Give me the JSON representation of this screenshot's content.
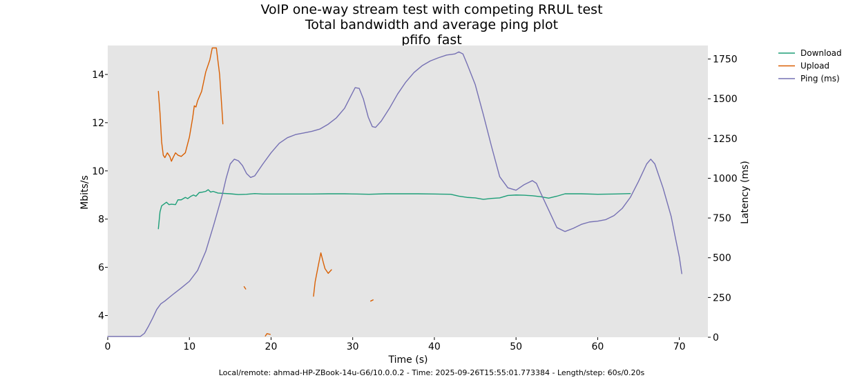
{
  "chart_data": {
    "type": "line",
    "title_lines": [
      "VoIP one-way stream test with competing RRUL test",
      "Total bandwidth and average ping plot",
      "pfifo_fast"
    ],
    "xlabel": "Time (s)",
    "ylabel_left": "Mbits/s",
    "ylabel_right": "Latency (ms)",
    "xlim": [
      0,
      73.5
    ],
    "ylim_left": [
      3.1,
      15.2
    ],
    "ylim_right": [
      0,
      1835
    ],
    "x_ticks": [
      0,
      10,
      20,
      30,
      40,
      50,
      60,
      70
    ],
    "y_ticks_left": [
      4,
      6,
      8,
      10,
      12,
      14
    ],
    "y_ticks_right": [
      0,
      250,
      500,
      750,
      1000,
      1250,
      1500,
      1750
    ],
    "grid": false,
    "background": "#e5e5e5",
    "legend_position": "upper right, outside plot",
    "footer": "Local/remote: ahmad-HP-ZBook-14u-G6/10.0.0.2 - Time: 2025-09-26T15:55:01.773384 - Length/step: 60s/0.20s",
    "series": [
      {
        "name": "Download",
        "axis": "left",
        "color": "#1b9e77",
        "segments": [
          [
            [
              6.2,
              7.6
            ],
            [
              6.4,
              8.3
            ],
            [
              6.6,
              8.55
            ],
            [
              7.0,
              8.65
            ],
            [
              7.2,
              8.7
            ],
            [
              7.5,
              8.6
            ],
            [
              7.8,
              8.62
            ],
            [
              8.3,
              8.6
            ],
            [
              8.6,
              8.8
            ],
            [
              9.0,
              8.8
            ],
            [
              9.5,
              8.9
            ],
            [
              9.8,
              8.85
            ],
            [
              10.2,
              8.95
            ],
            [
              10.5,
              9.0
            ],
            [
              10.8,
              8.95
            ],
            [
              11.2,
              9.1
            ],
            [
              11.6,
              9.12
            ],
            [
              12.0,
              9.15
            ],
            [
              12.3,
              9.22
            ],
            [
              12.6,
              9.12
            ],
            [
              12.9,
              9.15
            ],
            [
              13.5,
              9.08
            ],
            [
              15.0,
              9.05
            ],
            [
              16.0,
              9.02
            ],
            [
              17.0,
              9.03
            ],
            [
              18.0,
              9.06
            ],
            [
              19.0,
              9.04
            ],
            [
              21.0,
              9.04
            ],
            [
              23.0,
              9.04
            ],
            [
              25.0,
              9.04
            ],
            [
              27.0,
              9.05
            ],
            [
              29.0,
              9.05
            ],
            [
              30.5,
              9.04
            ],
            [
              32.0,
              9.03
            ],
            [
              34.0,
              9.05
            ],
            [
              36.0,
              9.05
            ],
            [
              38.0,
              9.05
            ],
            [
              40.0,
              9.04
            ],
            [
              42.0,
              9.03
            ],
            [
              43.0,
              8.95
            ],
            [
              44.0,
              8.9
            ],
            [
              45.0,
              8.88
            ],
            [
              46.0,
              8.82
            ],
            [
              47.0,
              8.86
            ],
            [
              48.0,
              8.88
            ],
            [
              49.0,
              8.98
            ],
            [
              50.0,
              9.0
            ],
            [
              51.0,
              8.99
            ],
            [
              52.0,
              8.97
            ],
            [
              53.0,
              8.93
            ],
            [
              54.0,
              8.87
            ],
            [
              55.0,
              8.95
            ],
            [
              56.0,
              9.05
            ],
            [
              58.0,
              9.05
            ],
            [
              60.0,
              9.03
            ],
            [
              62.0,
              9.04
            ],
            [
              64.0,
              9.06
            ]
          ]
        ]
      },
      {
        "name": "Upload",
        "axis": "left",
        "color": "#d95f02",
        "segments": [
          [
            [
              6.2,
              13.3
            ],
            [
              6.4,
              12.4
            ],
            [
              6.6,
              11.2
            ],
            [
              6.8,
              10.65
            ],
            [
              7.0,
              10.55
            ],
            [
              7.3,
              10.75
            ],
            [
              7.6,
              10.6
            ],
            [
              7.8,
              10.4
            ],
            [
              8.0,
              10.55
            ],
            [
              8.3,
              10.75
            ],
            [
              8.6,
              10.65
            ],
            [
              9.0,
              10.6
            ],
            [
              9.5,
              10.75
            ],
            [
              10.0,
              11.4
            ],
            [
              10.4,
              12.2
            ],
            [
              10.6,
              12.7
            ],
            [
              10.8,
              12.65
            ],
            [
              11.0,
              12.9
            ],
            [
              11.5,
              13.3
            ],
            [
              12.0,
              14.1
            ],
            [
              12.5,
              14.6
            ],
            [
              12.8,
              15.1
            ],
            [
              13.3,
              15.1
            ],
            [
              13.7,
              14.0
            ],
            [
              14.1,
              11.95
            ]
          ],
          [
            [
              16.7,
              5.2
            ],
            [
              16.9,
              5.1
            ]
          ],
          [
            [
              19.3,
              3.15
            ],
            [
              19.5,
              3.25
            ],
            [
              19.9,
              3.22
            ]
          ],
          [
            [
              25.2,
              4.8
            ],
            [
              25.4,
              5.4
            ],
            [
              25.8,
              6.1
            ],
            [
              26.1,
              6.6
            ],
            [
              26.4,
              6.2
            ],
            [
              26.6,
              5.95
            ],
            [
              27.0,
              5.75
            ],
            [
              27.4,
              5.9
            ]
          ],
          [
            [
              32.2,
              4.6
            ],
            [
              32.5,
              4.65
            ]
          ]
        ]
      },
      {
        "name": "Ping (ms)",
        "axis": "right",
        "color": "#7570b3",
        "segments": [
          [
            [
              0.0,
              5
            ],
            [
              4.0,
              5
            ],
            [
              4.5,
              25
            ],
            [
              5.0,
              70
            ],
            [
              5.5,
              120
            ],
            [
              6.0,
              175
            ],
            [
              6.5,
              210
            ],
            [
              7.0,
              228
            ],
            [
              8.0,
              270
            ],
            [
              9.0,
              310
            ],
            [
              10.0,
              352
            ],
            [
              11.0,
              420
            ],
            [
              12.0,
              540
            ],
            [
              13.0,
              710
            ],
            [
              14.0,
              890
            ],
            [
              14.5,
              1000
            ],
            [
              15.0,
              1090
            ],
            [
              15.5,
              1120
            ],
            [
              16.0,
              1110
            ],
            [
              16.5,
              1080
            ],
            [
              17.0,
              1030
            ],
            [
              17.5,
              1005
            ],
            [
              18.0,
              1015
            ],
            [
              19.0,
              1090
            ],
            [
              20.0,
              1160
            ],
            [
              21.0,
              1220
            ],
            [
              22.0,
              1255
            ],
            [
              23.0,
              1275
            ],
            [
              24.0,
              1285
            ],
            [
              25.0,
              1295
            ],
            [
              26.0,
              1310
            ],
            [
              27.0,
              1340
            ],
            [
              28.0,
              1380
            ],
            [
              29.0,
              1440
            ],
            [
              29.8,
              1520
            ],
            [
              30.3,
              1570
            ],
            [
              30.8,
              1565
            ],
            [
              31.3,
              1500
            ],
            [
              31.9,
              1385
            ],
            [
              32.4,
              1325
            ],
            [
              32.8,
              1320
            ],
            [
              33.5,
              1360
            ],
            [
              34.5,
              1440
            ],
            [
              35.5,
              1530
            ],
            [
              36.5,
              1605
            ],
            [
              37.5,
              1665
            ],
            [
              38.5,
              1708
            ],
            [
              39.5,
              1738
            ],
            [
              40.5,
              1758
            ],
            [
              41.5,
              1775
            ],
            [
              42.5,
              1782
            ],
            [
              43.0,
              1795
            ],
            [
              43.5,
              1782
            ],
            [
              44.0,
              1720
            ],
            [
              45.0,
              1590
            ],
            [
              46.0,
              1400
            ],
            [
              47.0,
              1200
            ],
            [
              48.0,
              1010
            ],
            [
              49.0,
              940
            ],
            [
              50.0,
              925
            ],
            [
              51.0,
              960
            ],
            [
              52.0,
              985
            ],
            [
              52.5,
              968
            ],
            [
              53.0,
              910
            ],
            [
              54.0,
              800
            ],
            [
              55.0,
              690
            ],
            [
              56.0,
              665
            ],
            [
              57.0,
              685
            ],
            [
              58.0,
              710
            ],
            [
              59.0,
              725
            ],
            [
              60.0,
              730
            ],
            [
              61.0,
              740
            ],
            [
              62.0,
              765
            ],
            [
              63.0,
              810
            ],
            [
              64.0,
              880
            ],
            [
              65.0,
              980
            ],
            [
              66.0,
              1090
            ],
            [
              66.5,
              1120
            ],
            [
              67.0,
              1090
            ],
            [
              68.0,
              940
            ],
            [
              69.0,
              760
            ],
            [
              69.5,
              630
            ],
            [
              70.0,
              505
            ],
            [
              70.3,
              400
            ]
          ]
        ]
      }
    ]
  }
}
